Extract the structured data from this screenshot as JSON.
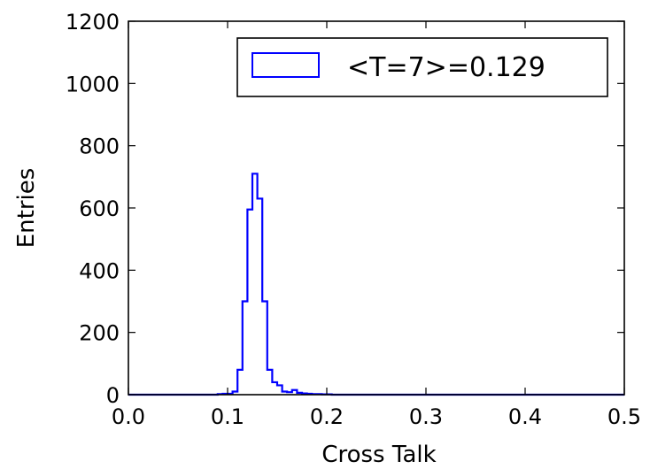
{
  "chart_data": {
    "type": "histogram",
    "xlabel": "Cross Talk",
    "ylabel": "Entries",
    "xlim": [
      0.0,
      0.5
    ],
    "ylim": [
      0,
      1200
    ],
    "xticks": [
      0.0,
      0.1,
      0.2,
      0.3,
      0.4,
      0.5
    ],
    "xtick_labels": [
      "0.0",
      "0.1",
      "0.2",
      "0.3",
      "0.4",
      "0.5"
    ],
    "yticks": [
      0,
      200,
      400,
      600,
      800,
      1000,
      1200
    ],
    "ytick_labels": [
      "0",
      "200",
      "400",
      "600",
      "800",
      "1000",
      "1200"
    ],
    "grid": false,
    "legend": {
      "placement": "top-right",
      "entries": [
        "<T=7>=0.129"
      ]
    },
    "series": [
      {
        "name": "<T=7>=0.129",
        "color": "#0000ff",
        "bin_edges": [
          0.0,
          0.005,
          0.01,
          0.015,
          0.02,
          0.025,
          0.03,
          0.035,
          0.04,
          0.045,
          0.05,
          0.055,
          0.06,
          0.065,
          0.07,
          0.075,
          0.08,
          0.085,
          0.09,
          0.095,
          0.1,
          0.105,
          0.11,
          0.115,
          0.12,
          0.125,
          0.13,
          0.135,
          0.14,
          0.145,
          0.15,
          0.155,
          0.16,
          0.165,
          0.17,
          0.175,
          0.18,
          0.185,
          0.19,
          0.195,
          0.2,
          0.205,
          0.21,
          0.215,
          0.22,
          0.225,
          0.23,
          0.235,
          0.24,
          0.245,
          0.25,
          0.255,
          0.26,
          0.265,
          0.27,
          0.275,
          0.28,
          0.285,
          0.29,
          0.295,
          0.3,
          0.305,
          0.31,
          0.315,
          0.32,
          0.325,
          0.33,
          0.335,
          0.34,
          0.345,
          0.35,
          0.355,
          0.36,
          0.365,
          0.37,
          0.375,
          0.38,
          0.385,
          0.39,
          0.395,
          0.4,
          0.405,
          0.41,
          0.415,
          0.42,
          0.425,
          0.43,
          0.435,
          0.44,
          0.445,
          0.45,
          0.455,
          0.46,
          0.465,
          0.47,
          0.475,
          0.48,
          0.485,
          0.49,
          0.495,
          0.5
        ],
        "counts": [
          0,
          0,
          0,
          0,
          0,
          0,
          0,
          0,
          0,
          0,
          0,
          0,
          0,
          0,
          0,
          0,
          0,
          0,
          2,
          3,
          3,
          10,
          80,
          300,
          595,
          710,
          630,
          300,
          80,
          40,
          30,
          10,
          8,
          15,
          6,
          4,
          3,
          2,
          2,
          1,
          1,
          0,
          0,
          0,
          0,
          0,
          0,
          0,
          0,
          0,
          0,
          0,
          0,
          0,
          0,
          0,
          0,
          0,
          0,
          0,
          0,
          0,
          0,
          0,
          0,
          0,
          0,
          0,
          0,
          0,
          0,
          0,
          0,
          0,
          0,
          0,
          0,
          0,
          0,
          0,
          0,
          0,
          0,
          0,
          0,
          0,
          0,
          0,
          0,
          0,
          0,
          0,
          0,
          0,
          0,
          0,
          0,
          0,
          0,
          0
        ]
      }
    ]
  }
}
